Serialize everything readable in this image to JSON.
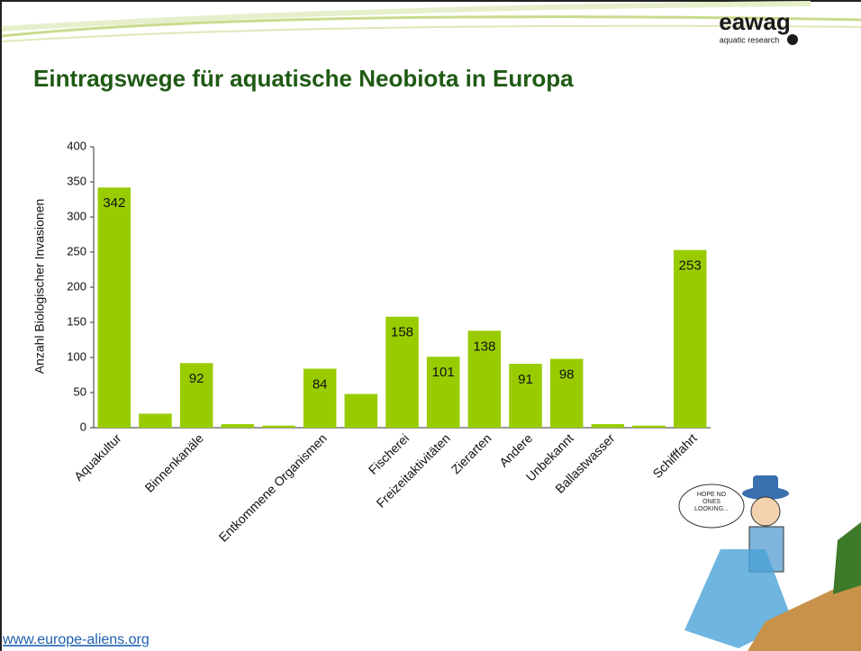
{
  "header": {
    "logo": "eawag",
    "logo_subtitle": "aquatic research",
    "title": "Eintragswege für aquatische Neobiota in Europa"
  },
  "chart_data": {
    "type": "bar",
    "y_label": "Anzahl Biologischer Invasionen",
    "categories": [
      "Aquakultur",
      null,
      "Binnenkanäle",
      null,
      null,
      "Entkommene Organismen",
      null,
      "Fischerei",
      "Freizeitaktivitäten",
      "Zierarten",
      "Andere",
      "Unbekannt",
      "Ballastwasser",
      null,
      "Schifffahrt"
    ],
    "values": [
      342,
      20,
      92,
      5,
      3,
      84,
      48,
      158,
      101,
      138,
      91,
      98,
      5,
      3,
      253
    ],
    "value_labels": [
      "342",
      null,
      "92",
      null,
      null,
      "84",
      null,
      "158",
      "101",
      "138",
      "91",
      "98",
      null,
      null,
      "253"
    ],
    "color": "#99cc00",
    "ylim": [
      0,
      400
    ],
    "yticks": [
      0,
      50,
      100,
      150,
      200,
      250,
      300,
      350,
      400
    ],
    "grid": false
  },
  "cartoon_text": "HOPE NO ONES LOOKING...",
  "footer": {
    "link": "www.europe-aliens.org"
  }
}
